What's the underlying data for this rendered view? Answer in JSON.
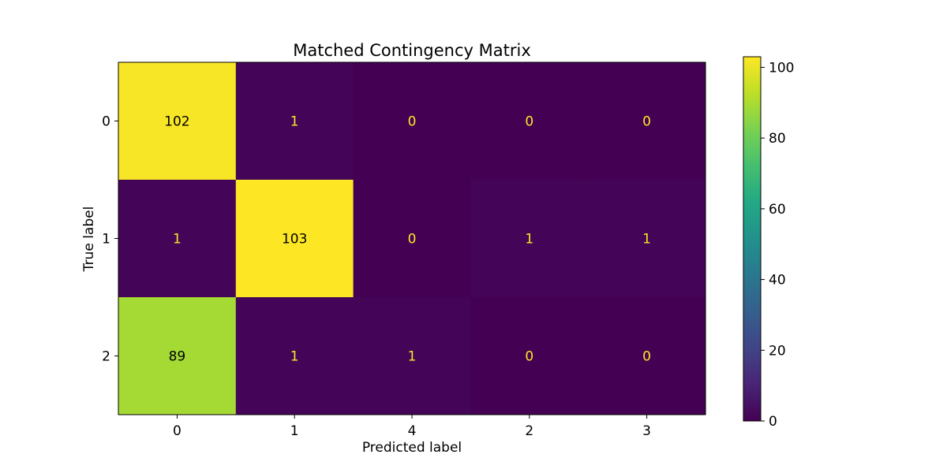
{
  "chart_data": {
    "type": "heatmap",
    "title": "Matched Contingency Matrix",
    "xlabel": "Predicted label",
    "ylabel": "True label",
    "x_categories": [
      "0",
      "1",
      "4",
      "2",
      "3"
    ],
    "y_categories": [
      "0",
      "1",
      "2"
    ],
    "values": [
      [
        102,
        1,
        0,
        0,
        0
      ],
      [
        1,
        103,
        0,
        1,
        1
      ],
      [
        89,
        1,
        1,
        0,
        0
      ]
    ],
    "colormap": "viridis",
    "color_range": [
      0,
      103
    ],
    "colorbar_ticks": [
      0,
      20,
      40,
      60,
      80,
      100
    ],
    "text_color_dark": "#000000",
    "text_color_light": "#fde725"
  }
}
